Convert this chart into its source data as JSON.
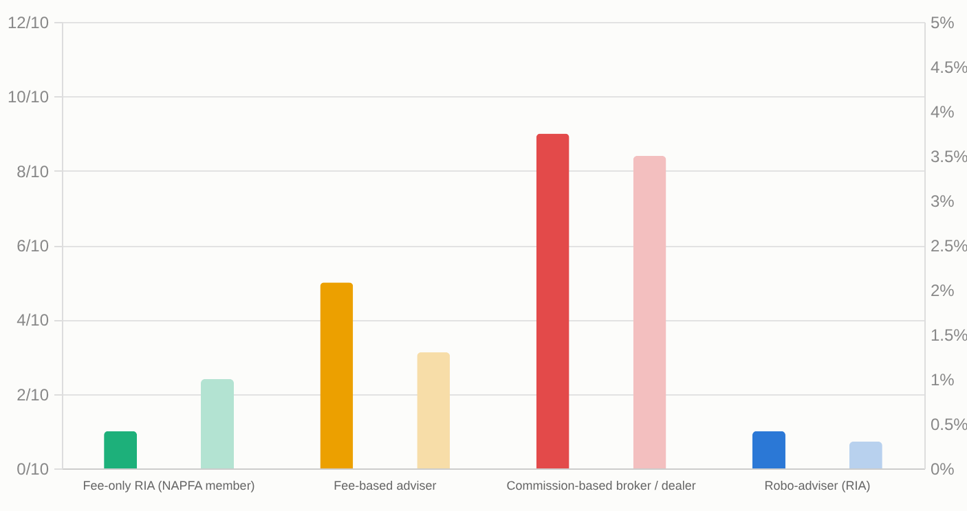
{
  "chart_data": {
    "type": "bar",
    "categories": [
      "Fee-only RIA (NAPFA member)",
      "Fee-based adviser",
      "Commission-based broker / dealer",
      "Robo-adviser (RIA)"
    ],
    "series": [
      {
        "colors": [
          "#1db07a",
          "#eca000",
          "#e34a4a",
          "#2b78d6"
        ],
        "values": [
          0.1,
          0.5,
          0.9,
          0.1
        ]
      },
      {
        "axis": "y2",
        "colors": [
          "#b3e3d2",
          "#f7dda8",
          "#f3bfbf",
          "#b8d1ee"
        ],
        "values": [
          1,
          1.3,
          3.5,
          0.3
        ]
      }
    ],
    "ylim": [
      0,
      1.2
    ],
    "yticks": [
      {
        "value": 0,
        "label": "0/10"
      },
      {
        "value": 0.2,
        "label": "2/10"
      },
      {
        "value": 0.4,
        "label": "4/10"
      },
      {
        "value": 0.6,
        "label": "6/10"
      },
      {
        "value": 0.8,
        "label": "8/10"
      },
      {
        "value": 1,
        "label": "10/10"
      },
      {
        "value": 1.2,
        "label": "12/10"
      }
    ],
    "y2lim": [
      0,
      5
    ],
    "y2ticks": [
      {
        "value": 0,
        "label": "0%"
      },
      {
        "value": 0.5,
        "label": "0.5%"
      },
      {
        "value": 1,
        "label": "1%"
      },
      {
        "value": 1.5,
        "label": "1.5%"
      },
      {
        "value": 2,
        "label": "2%"
      },
      {
        "value": 2.5,
        "label": "2.5%"
      },
      {
        "value": 3,
        "label": "3%"
      },
      {
        "value": 3.5,
        "label": "3.5%"
      },
      {
        "value": 4,
        "label": "4%"
      },
      {
        "value": 4.5,
        "label": "4.5%"
      },
      {
        "value": 5,
        "label": "5%"
      }
    ],
    "grid": "y"
  }
}
